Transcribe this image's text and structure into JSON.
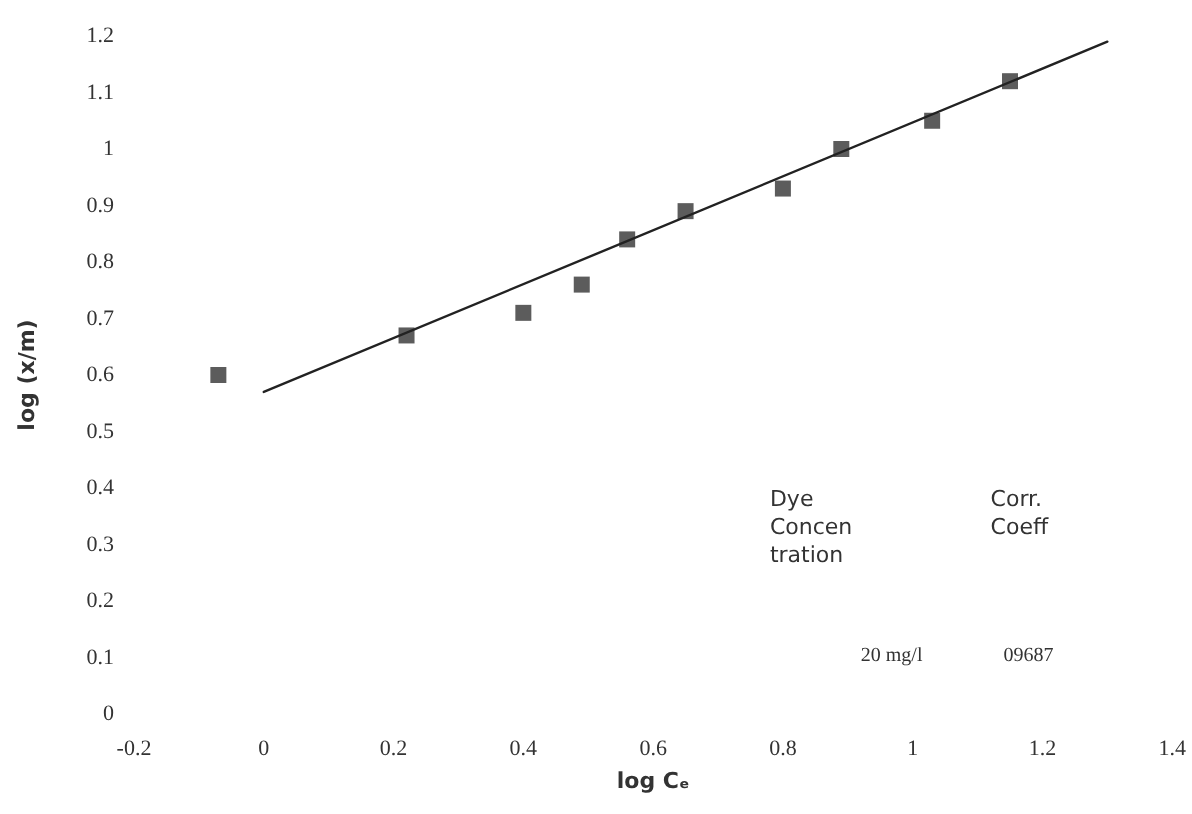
{
  "chart_data": {
    "type": "scatter",
    "xlabel": "log Cₑ",
    "ylabel": "log (x/m)",
    "xlim": [
      -0.2,
      1.4
    ],
    "xticks": [
      -0.2,
      0,
      0.2,
      0.4,
      0.6,
      0.8,
      1,
      1.2,
      1.4
    ],
    "ylim": [
      0,
      1.2
    ],
    "yticks": [
      0,
      0.1,
      0.2,
      0.3,
      0.4,
      0.5,
      0.6,
      0.7,
      0.8,
      0.9,
      1,
      1.1,
      1.2
    ],
    "grid": false,
    "marker": "square",
    "series": [
      {
        "color": "#333333",
        "x": [
          -0.07,
          0.22,
          0.4,
          0.49,
          0.56,
          0.65,
          0.8,
          0.89,
          1.03,
          1.15
        ],
        "values": [
          0.6,
          0.67,
          0.71,
          0.76,
          0.84,
          0.89,
          0.93,
          1.0,
          1.05,
          1.12
        ]
      },
      {
        "type": "line",
        "color": "#222222",
        "marker": "none",
        "line_style": "solid",
        "x": [
          0,
          1.3
        ],
        "values": [
          0.57,
          1.19
        ]
      }
    ],
    "annotations": [
      "Dye Concentration",
      "Corr. Coeff",
      "20 mg/l",
      "09687"
    ]
  }
}
